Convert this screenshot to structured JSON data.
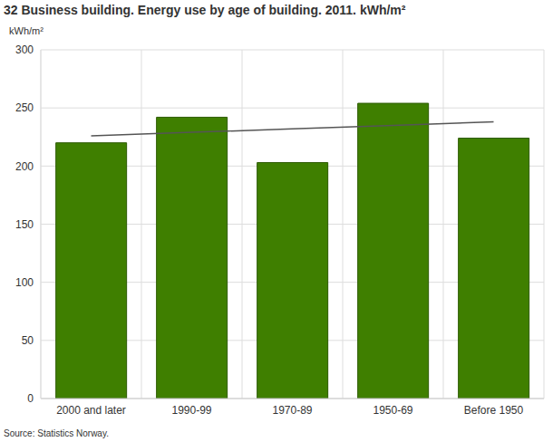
{
  "chart_data": {
    "type": "bar",
    "title": "32 Business building. Energy use by age of building. 2011. kWh/m²",
    "y_label": "kWh/m²",
    "source": "Source: Statistics Norway.",
    "categories": [
      "2000 and later",
      "1990-99",
      "1970-89",
      "1950-69",
      "Before 1950"
    ],
    "series": [
      {
        "type": "bar",
        "color": "#3f7f00",
        "values": [
          220,
          242,
          203,
          254,
          224
        ]
      },
      {
        "type": "line",
        "color": "#555555",
        "values": [
          226,
          229,
          232,
          235,
          238
        ]
      }
    ],
    "ylim": [
      0,
      300
    ],
    "yticks": [
      0,
      50,
      100,
      150,
      200,
      250,
      300
    ],
    "grid": true
  }
}
